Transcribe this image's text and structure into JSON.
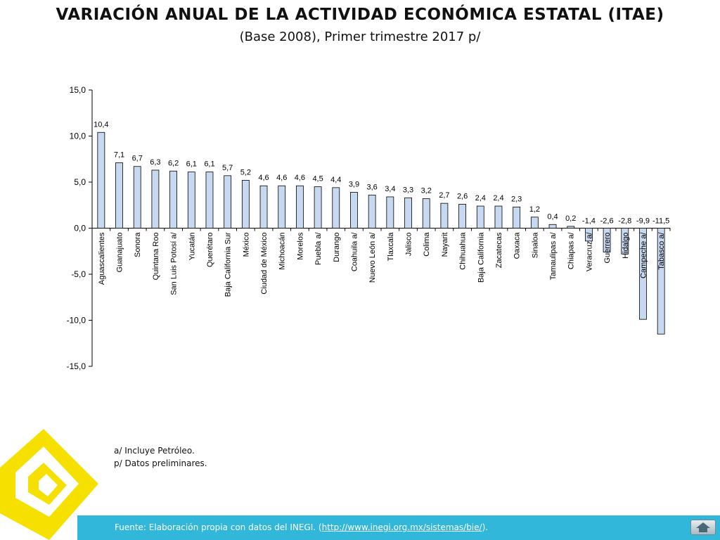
{
  "title": "VARIACIÓN ANUAL DE LA ACTIVIDAD ECONÓMICA ESTATAL (ITAE)",
  "subtitle": "(Base 2008),  Primer trimestre  2017 p/",
  "notes": [
    "a/ Incluye Petróleo.",
    "p/ Datos preliminares."
  ],
  "footer": {
    "source_prefix": "Fuente: Elaboración propia con datos del INEGI. (",
    "source_link": "http://www.inegi.org.mx/sistemas/bie/",
    "source_suffix": ").",
    "home_icon": "home-arrow-icon"
  },
  "colors": {
    "bar_fill": "#c6d9f1",
    "bar_stroke": "#000000",
    "footer_bar": "#31b7d9",
    "logo": "#f6e000"
  },
  "chart_data": {
    "type": "bar",
    "title": "VARIACIÓN ANUAL DE LA ACTIVIDAD ECONÓMICA ESTATAL (ITAE)",
    "subtitle": "(Base 2008),  Primer trimestre  2017 p/",
    "xlabel": "",
    "ylabel": "",
    "ylim": [
      -15,
      15
    ],
    "yticks": [
      15,
      10,
      5,
      0,
      -5,
      -10,
      -15
    ],
    "ytick_labels": [
      "15,0",
      "10,0",
      "5,0",
      "0,0",
      "-5,0",
      "-10,0",
      "-15,0"
    ],
    "grid": false,
    "legend": "none",
    "categories": [
      "Aguascalientes",
      "Guanajuato",
      "Sonora",
      "Quintana Roo",
      "San Luis Potosí a/",
      "Yucatán",
      "Querétaro",
      "Baja California Sur",
      "México",
      "Ciudad de México",
      "Michoacán",
      "Morelos",
      "Puebla a/",
      "Durango",
      "Coahuila a/",
      "Nuevo León a/",
      "Tlaxcala",
      "Jalisco",
      "Colima",
      "Nayarit",
      "Chihuahua",
      "Baja California",
      "Zacatecas",
      "Oaxaca",
      "Sinaloa",
      "Tamaulipas a/",
      "Chiapas a/",
      "Veracruz a/",
      "Guerrero",
      "Hidalgo",
      "Campeche a/",
      "Tabasco a/"
    ],
    "values": [
      10.4,
      7.1,
      6.7,
      6.3,
      6.2,
      6.1,
      6.1,
      5.7,
      5.2,
      4.6,
      4.6,
      4.6,
      4.5,
      4.4,
      3.9,
      3.6,
      3.4,
      3.3,
      3.2,
      2.7,
      2.6,
      2.4,
      2.4,
      2.3,
      1.2,
      0.4,
      0.2,
      -1.4,
      -2.6,
      -2.8,
      -9.9,
      -11.5
    ],
    "value_labels": [
      "10,4",
      "7,1",
      "6,7",
      "6,3",
      "6,2",
      "6,1",
      "6,1",
      "5,7",
      "5,2",
      "4,6",
      "4,6",
      "4,6",
      "4,5",
      "4,4",
      "3,9",
      "3,6",
      "3,4",
      "3,3",
      "3,2",
      "2,7",
      "2,6",
      "2,4",
      "2,4",
      "2,3",
      "1,2",
      "0,4",
      "0,2",
      "-1,4",
      "-2,6",
      "-2,8",
      "-9,9",
      "-11,5"
    ]
  }
}
